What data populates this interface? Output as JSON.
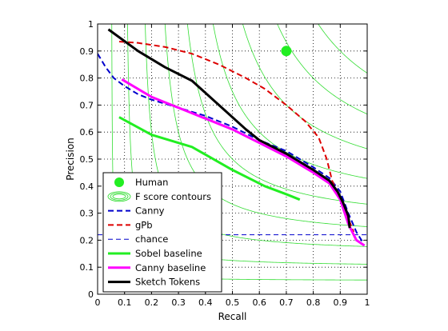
{
  "chart_data": {
    "type": "line",
    "title": "",
    "xlabel": "Recall",
    "ylabel": "Precision",
    "xlim": [
      0,
      1
    ],
    "ylim": [
      0,
      1
    ],
    "grid": true,
    "legend_position": "bottom-left",
    "xticks": [
      "0",
      "0.1",
      "0.2",
      "0.3",
      "0.4",
      "0.5",
      "0.6",
      "0.7",
      "0.8",
      "0.9",
      "1"
    ],
    "yticks": [
      "0",
      "0.1",
      "0.2",
      "0.3",
      "0.4",
      "0.5",
      "0.6",
      "0.7",
      "0.8",
      "0.9",
      "1"
    ],
    "contours": {
      "name": "F score contours",
      "color": "#33dd33",
      "levels": [
        0.1,
        0.2,
        0.3,
        0.4,
        0.5,
        0.6,
        0.7,
        0.8,
        0.9
      ]
    },
    "series": [
      {
        "name": "Human",
        "kind": "marker",
        "color": "#22ee22",
        "points": [
          [
            0.7,
            0.9
          ]
        ]
      },
      {
        "name": "Canny",
        "kind": "line",
        "dash": "dashed",
        "color": "#0000cc",
        "width": 2,
        "points": [
          [
            0.0,
            0.89
          ],
          [
            0.03,
            0.84
          ],
          [
            0.06,
            0.8
          ],
          [
            0.1,
            0.77
          ],
          [
            0.15,
            0.74
          ],
          [
            0.2,
            0.72
          ],
          [
            0.3,
            0.69
          ],
          [
            0.4,
            0.66
          ],
          [
            0.5,
            0.62
          ],
          [
            0.6,
            0.57
          ],
          [
            0.7,
            0.53
          ],
          [
            0.8,
            0.47
          ],
          [
            0.86,
            0.43
          ],
          [
            0.9,
            0.38
          ],
          [
            0.93,
            0.3
          ],
          [
            0.96,
            0.23
          ],
          [
            0.985,
            0.19
          ]
        ]
      },
      {
        "name": "gPb",
        "kind": "line",
        "dash": "dashed",
        "color": "#dd0000",
        "width": 2,
        "points": [
          [
            0.08,
            0.935
          ],
          [
            0.15,
            0.93
          ],
          [
            0.25,
            0.915
          ],
          [
            0.35,
            0.89
          ],
          [
            0.45,
            0.85
          ],
          [
            0.55,
            0.8
          ],
          [
            0.62,
            0.76
          ],
          [
            0.7,
            0.7
          ],
          [
            0.77,
            0.64
          ],
          [
            0.82,
            0.58
          ],
          [
            0.85,
            0.5
          ],
          [
            0.87,
            0.42
          ],
          [
            0.9,
            0.35
          ],
          [
            0.93,
            0.28
          ],
          [
            0.95,
            0.23
          ]
        ]
      },
      {
        "name": "chance",
        "kind": "line",
        "dash": "dashed",
        "color": "#0000cc",
        "width": 1,
        "points": [
          [
            0.0,
            0.22
          ],
          [
            1.0,
            0.22
          ]
        ]
      },
      {
        "name": "Sobel baseline",
        "kind": "line",
        "dash": "solid",
        "color": "#22ee22",
        "width": 3,
        "points": [
          [
            0.08,
            0.655
          ],
          [
            0.2,
            0.59
          ],
          [
            0.35,
            0.545
          ],
          [
            0.5,
            0.46
          ],
          [
            0.62,
            0.4
          ],
          [
            0.7,
            0.37
          ],
          [
            0.75,
            0.35
          ]
        ]
      },
      {
        "name": "Canny baseline",
        "kind": "line",
        "dash": "solid",
        "color": "#ff00ff",
        "width": 3,
        "points": [
          [
            0.09,
            0.795
          ],
          [
            0.2,
            0.73
          ],
          [
            0.35,
            0.67
          ],
          [
            0.5,
            0.61
          ],
          [
            0.6,
            0.56
          ],
          [
            0.7,
            0.51
          ],
          [
            0.8,
            0.45
          ],
          [
            0.86,
            0.41
          ],
          [
            0.9,
            0.35
          ],
          [
            0.93,
            0.26
          ],
          [
            0.96,
            0.2
          ],
          [
            0.99,
            0.18
          ]
        ]
      },
      {
        "name": "Sketch Tokens",
        "kind": "line",
        "dash": "solid",
        "color": "#000000",
        "width": 3,
        "points": [
          [
            0.04,
            0.98
          ],
          [
            0.15,
            0.9
          ],
          [
            0.25,
            0.84
          ],
          [
            0.35,
            0.79
          ],
          [
            0.45,
            0.7
          ],
          [
            0.55,
            0.61
          ],
          [
            0.6,
            0.57
          ],
          [
            0.7,
            0.52
          ],
          [
            0.8,
            0.46
          ],
          [
            0.86,
            0.42
          ],
          [
            0.89,
            0.38
          ],
          [
            0.91,
            0.34
          ],
          [
            0.93,
            0.29
          ],
          [
            0.935,
            0.245
          ]
        ]
      }
    ],
    "legend": [
      "Human",
      "F score contours",
      "Canny",
      "gPb",
      "chance",
      "Sobel baseline",
      "Canny baseline",
      "Sketch Tokens"
    ]
  }
}
